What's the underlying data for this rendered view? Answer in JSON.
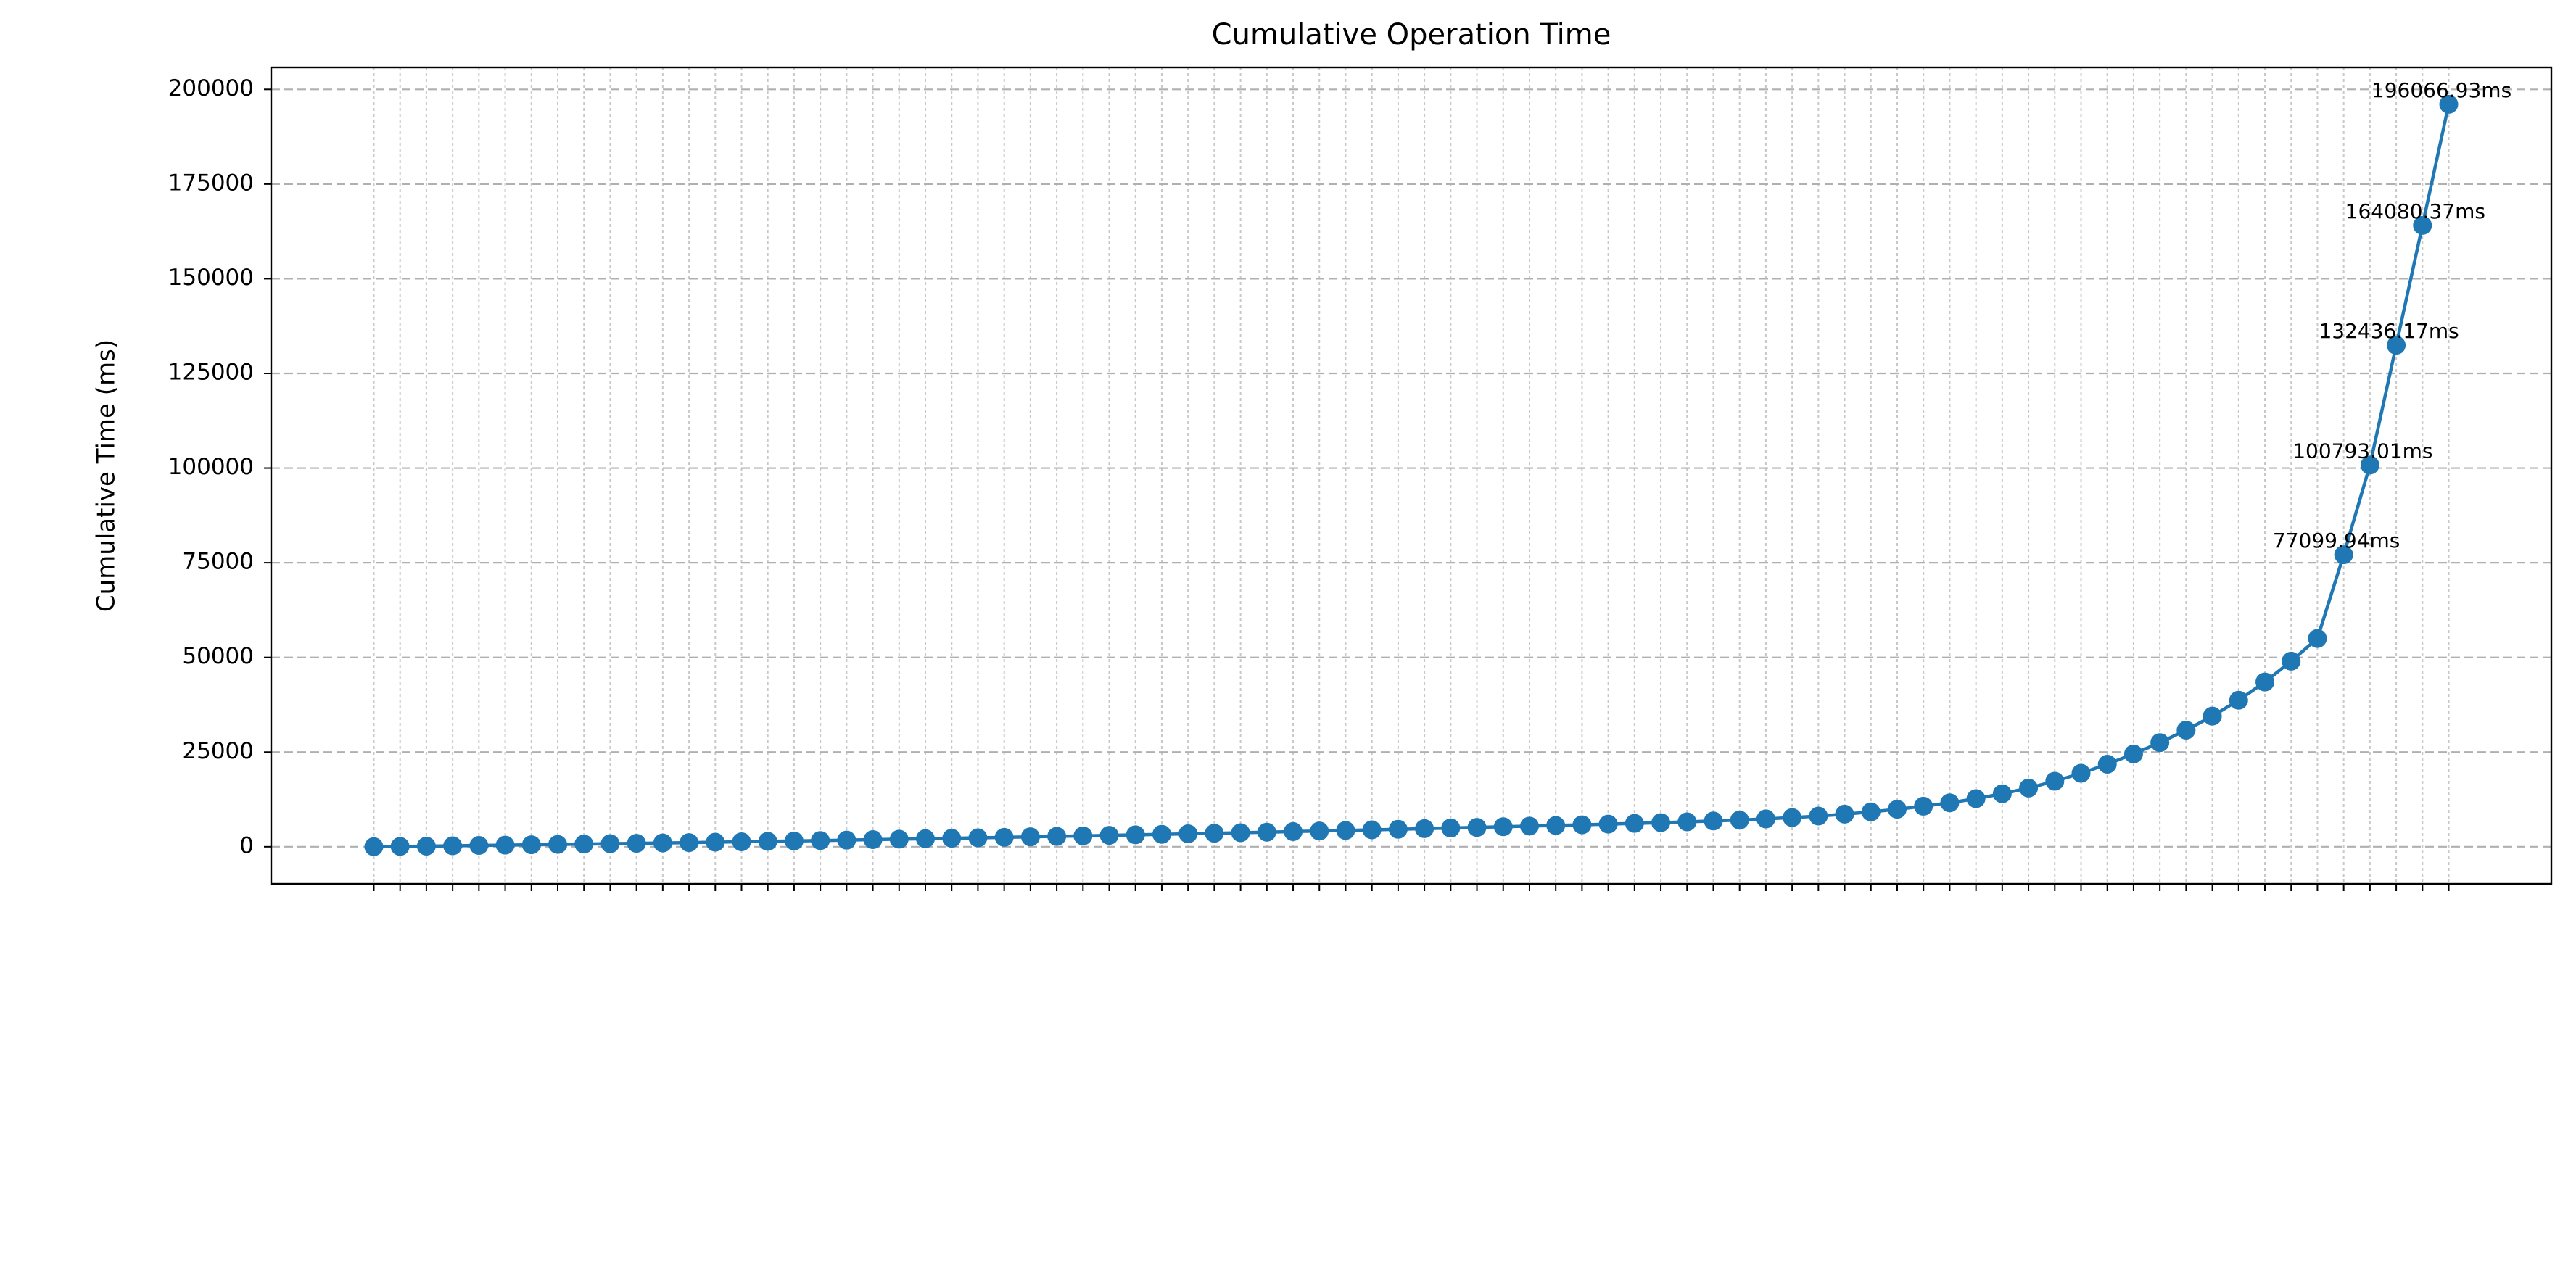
{
  "chart_data": {
    "type": "line",
    "title": "Cumulative Operation Time",
    "y_label": "Cumulative Time (ms)",
    "categories": [
      null,
      null,
      null,
      null,
      null,
      null,
      null,
      null,
      null,
      null,
      null,
      null,
      null,
      null,
      null,
      null,
      null,
      null,
      null,
      null,
      null,
      null,
      null,
      null,
      null,
      null,
      null,
      null,
      null,
      null,
      null,
      null,
      null,
      null,
      null,
      null,
      null,
      null,
      null,
      null,
      null,
      null,
      null,
      null,
      null,
      null,
      null,
      null,
      null,
      null,
      null,
      null,
      null,
      null,
      null,
      null,
      null,
      null,
      null,
      null,
      null,
      null,
      null,
      null,
      null,
      null,
      null,
      null,
      null,
      null,
      null,
      null,
      null,
      null,
      null,
      null,
      null,
      null,
      null,
      null
    ],
    "values": [
      10,
      80,
      160,
      250,
      340,
      430,
      520,
      610,
      700,
      800,
      900,
      1000,
      1100,
      1200,
      1310,
      1420,
      1530,
      1640,
      1750,
      1870,
      1990,
      2110,
      2230,
      2350,
      2480,
      2610,
      2740,
      2870,
      3000,
      3140,
      3280,
      3420,
      3560,
      3700,
      3850,
      4000,
      4150,
      4300,
      4460,
      4620,
      4780,
      4940,
      5100,
      5270,
      5440,
      5610,
      5790,
      5970,
      6160,
      6360,
      6570,
      6800,
      7050,
      7350,
      7700,
      8100,
      8600,
      9200,
      9900,
      10700,
      11600,
      12700,
      14000,
      15500,
      17300,
      19400,
      21800,
      24500,
      27500,
      30800,
      34500,
      38700,
      43500,
      49000,
      55000,
      77099.94,
      100793.01,
      132436.17,
      164080.37,
      196066.93
    ],
    "value_labels": [
      null,
      null,
      null,
      null,
      null,
      null,
      null,
      null,
      null,
      null,
      null,
      null,
      null,
      null,
      null,
      null,
      null,
      null,
      null,
      null,
      null,
      null,
      null,
      null,
      null,
      null,
      null,
      null,
      null,
      null,
      null,
      null,
      null,
      null,
      null,
      null,
      null,
      null,
      null,
      null,
      null,
      null,
      null,
      null,
      null,
      null,
      null,
      null,
      null,
      null,
      null,
      null,
      null,
      null,
      null,
      null,
      null,
      null,
      null,
      null,
      null,
      null,
      null,
      null,
      null,
      null,
      null,
      null,
      null,
      null,
      null,
      null,
      null,
      null,
      null,
      "77099.94ms",
      "100793.01ms",
      "132436.17ms",
      "164080.37ms",
      "196066.93ms"
    ],
    "color": "#1f77b4",
    "ylim": [
      -9800,
      205800
    ],
    "yticks": [
      0,
      25000,
      50000,
      75000,
      100000,
      125000,
      150000,
      175000,
      200000
    ],
    "grid": true
  }
}
